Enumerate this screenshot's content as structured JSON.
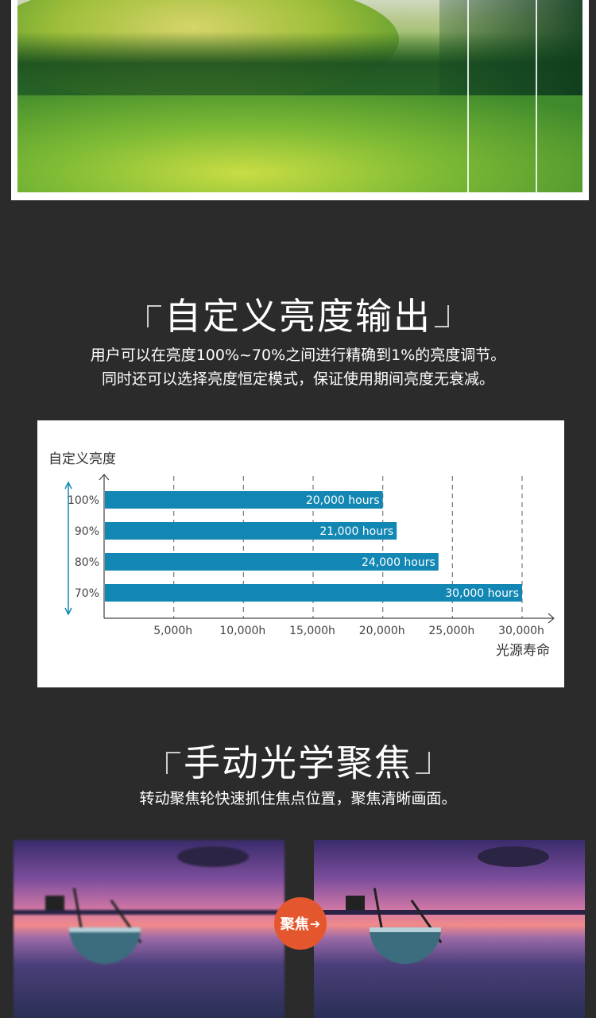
{
  "section1": {
    "title": "自定义亮度输出",
    "desc_line1": "用户可以在亮度100%~70%之间进行精确到1%的亮度调节。",
    "desc_line2": "同时还可以选择亮度恒定模式，保证使用期间亮度无衰减。"
  },
  "chart_data": {
    "type": "bar",
    "orientation": "horizontal",
    "title": "自定义亮度",
    "xlabel": "光源寿命",
    "ylabel": "",
    "categories": [
      "100%",
      "90%",
      "80%",
      "70%"
    ],
    "values": [
      20000,
      21000,
      24000,
      30000
    ],
    "data_labels": [
      "20,000 hours",
      "21,000 hours",
      "24,000 hours",
      "30,000 hours"
    ],
    "x_ticks": [
      5000,
      10000,
      15000,
      20000,
      25000,
      30000
    ],
    "x_tick_labels": [
      "5,000h",
      "10,000h",
      "15,000h",
      "20,000h",
      "25,000h",
      "30,000h"
    ],
    "xlim": [
      0,
      30000
    ],
    "grid": "vertical dashed",
    "bar_color": "#1387b4"
  },
  "section2": {
    "title": "手动光学聚焦",
    "desc": "转动聚焦轮快速抓住焦点位置，聚焦清晰画面。"
  },
  "focus_badge": {
    "label": "聚焦",
    "icon": "arrow-right-icon",
    "color": "#e4572e"
  }
}
